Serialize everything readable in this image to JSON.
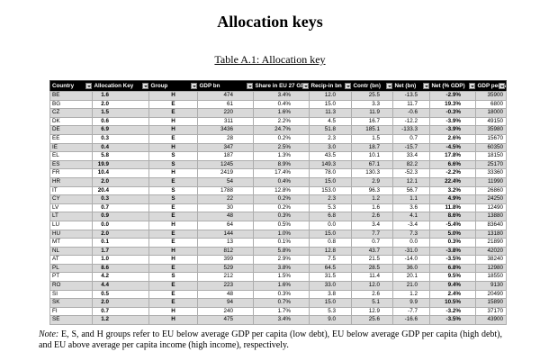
{
  "page": {
    "title": "Allocation keys",
    "table_caption": "Table A.1: Allocation key",
    "note_label": "Note:",
    "note_text": " E, S, and H groups refer to EU below average GDP per capita (low debt), EU below average GDP per capita (high debt), and EU above average per capita income (high income), respectively."
  },
  "icons": {
    "filter": "▼"
  },
  "colors": {
    "header_bg": "#000000",
    "header_text": "#ffffff",
    "row_stripe": "#d9d9d9",
    "grid_line": "#adadad",
    "text": "#000000"
  },
  "table": {
    "columns": [
      "Country",
      "Allocation Key",
      "Group",
      "GDP bn",
      "Share in EU 27 GDP",
      "Recip-in bn",
      "Contr (bn)",
      "Net (bn)",
      "Net (% GDP)",
      "GDP per cap"
    ],
    "rows": [
      [
        "BE",
        "1.6",
        "H",
        "474",
        "3.4%",
        "12.0",
        "25.5",
        "-13.5",
        "-2.9%",
        "35900"
      ],
      [
        "BG",
        "2.0",
        "E",
        "61",
        "0.4%",
        "15.0",
        "3.3",
        "11.7",
        "19.3%",
        "6800"
      ],
      [
        "CZ",
        "1.5",
        "E",
        "220",
        "1.6%",
        "11.3",
        "11.9",
        "-0.6",
        "-0.3%",
        "18000"
      ],
      [
        "DK",
        "0.6",
        "H",
        "311",
        "2.2%",
        "4.5",
        "16.7",
        "-12.2",
        "-3.9%",
        "49150"
      ],
      [
        "DE",
        "6.9",
        "H",
        "3436",
        "24.7%",
        "51.8",
        "185.1",
        "-133.3",
        "-3.9%",
        "35980"
      ],
      [
        "EE",
        "0.3",
        "E",
        "28",
        "0.2%",
        "2.3",
        "1.5",
        "0.7",
        "2.6%",
        "15670"
      ],
      [
        "IE",
        "0.4",
        "H",
        "347",
        "2.5%",
        "3.0",
        "18.7",
        "-15.7",
        "-4.5%",
        "60350"
      ],
      [
        "EL",
        "5.8",
        "S",
        "187",
        "1.3%",
        "43.5",
        "10.1",
        "33.4",
        "17.8%",
        "18150"
      ],
      [
        "ES",
        "19.9",
        "S",
        "1245",
        "8.9%",
        "149.3",
        "67.1",
        "82.2",
        "6.6%",
        "25170"
      ],
      [
        "FR",
        "10.4",
        "H",
        "2419",
        "17.4%",
        "78.0",
        "130.3",
        "-52.3",
        "-2.2%",
        "33360"
      ],
      [
        "HR",
        "2.0",
        "E",
        "54",
        "0.4%",
        "15.0",
        "2.9",
        "12.1",
        "22.4%",
        "11990"
      ],
      [
        "IT",
        "20.4",
        "S",
        "1788",
        "12.8%",
        "153.0",
        "96.3",
        "56.7",
        "3.2%",
        "26860"
      ],
      [
        "CY",
        "0.3",
        "S",
        "22",
        "0.2%",
        "2.3",
        "1.2",
        "1.1",
        "4.9%",
        "24250"
      ],
      [
        "LV",
        "0.7",
        "E",
        "30",
        "0.2%",
        "5.3",
        "1.6",
        "3.6",
        "11.8%",
        "12490"
      ],
      [
        "LT",
        "0.9",
        "E",
        "48",
        "0.3%",
        "6.8",
        "2.6",
        "4.1",
        "8.6%",
        "13880"
      ],
      [
        "LU",
        "0.0",
        "H",
        "64",
        "0.5%",
        "0.0",
        "3.4",
        "-3.4",
        "-5.4%",
        "83640"
      ],
      [
        "HU",
        "2.0",
        "E",
        "144",
        "1.0%",
        "15.0",
        "7.7",
        "7.3",
        "5.0%",
        "13180"
      ],
      [
        "MT",
        "0.1",
        "E",
        "13",
        "0.1%",
        "0.8",
        "0.7",
        "0.0",
        "0.3%",
        "21890"
      ],
      [
        "NL",
        "1.7",
        "H",
        "812",
        "5.8%",
        "12.8",
        "43.7",
        "-31.0",
        "-3.8%",
        "42020"
      ],
      [
        "AT",
        "1.0",
        "H",
        "399",
        "2.9%",
        "7.5",
        "21.5",
        "-14.0",
        "-3.5%",
        "38240"
      ],
      [
        "PL",
        "8.6",
        "E",
        "529",
        "3.8%",
        "64.5",
        "28.5",
        "36.0",
        "6.8%",
        "12980"
      ],
      [
        "PT",
        "4.2",
        "S",
        "212",
        "1.5%",
        "31.5",
        "11.4",
        "20.1",
        "9.5%",
        "18550"
      ],
      [
        "RO",
        "4.4",
        "E",
        "223",
        "1.6%",
        "33.0",
        "12.0",
        "21.0",
        "9.4%",
        "9130"
      ],
      [
        "SI",
        "0.5",
        "E",
        "48",
        "0.3%",
        "3.8",
        "2.6",
        "1.2",
        "2.4%",
        "20490"
      ],
      [
        "SK",
        "2.0",
        "E",
        "94",
        "0.7%",
        "15.0",
        "5.1",
        "9.9",
        "10.5%",
        "15890"
      ],
      [
        "FI",
        "0.7",
        "H",
        "240",
        "1.7%",
        "5.3",
        "12.9",
        "-7.7",
        "-3.2%",
        "37170"
      ],
      [
        "SE",
        "1.2",
        "H",
        "475",
        "3.4%",
        "9.0",
        "25.6",
        "-16.6",
        "-3.5%",
        "43900"
      ]
    ]
  }
}
